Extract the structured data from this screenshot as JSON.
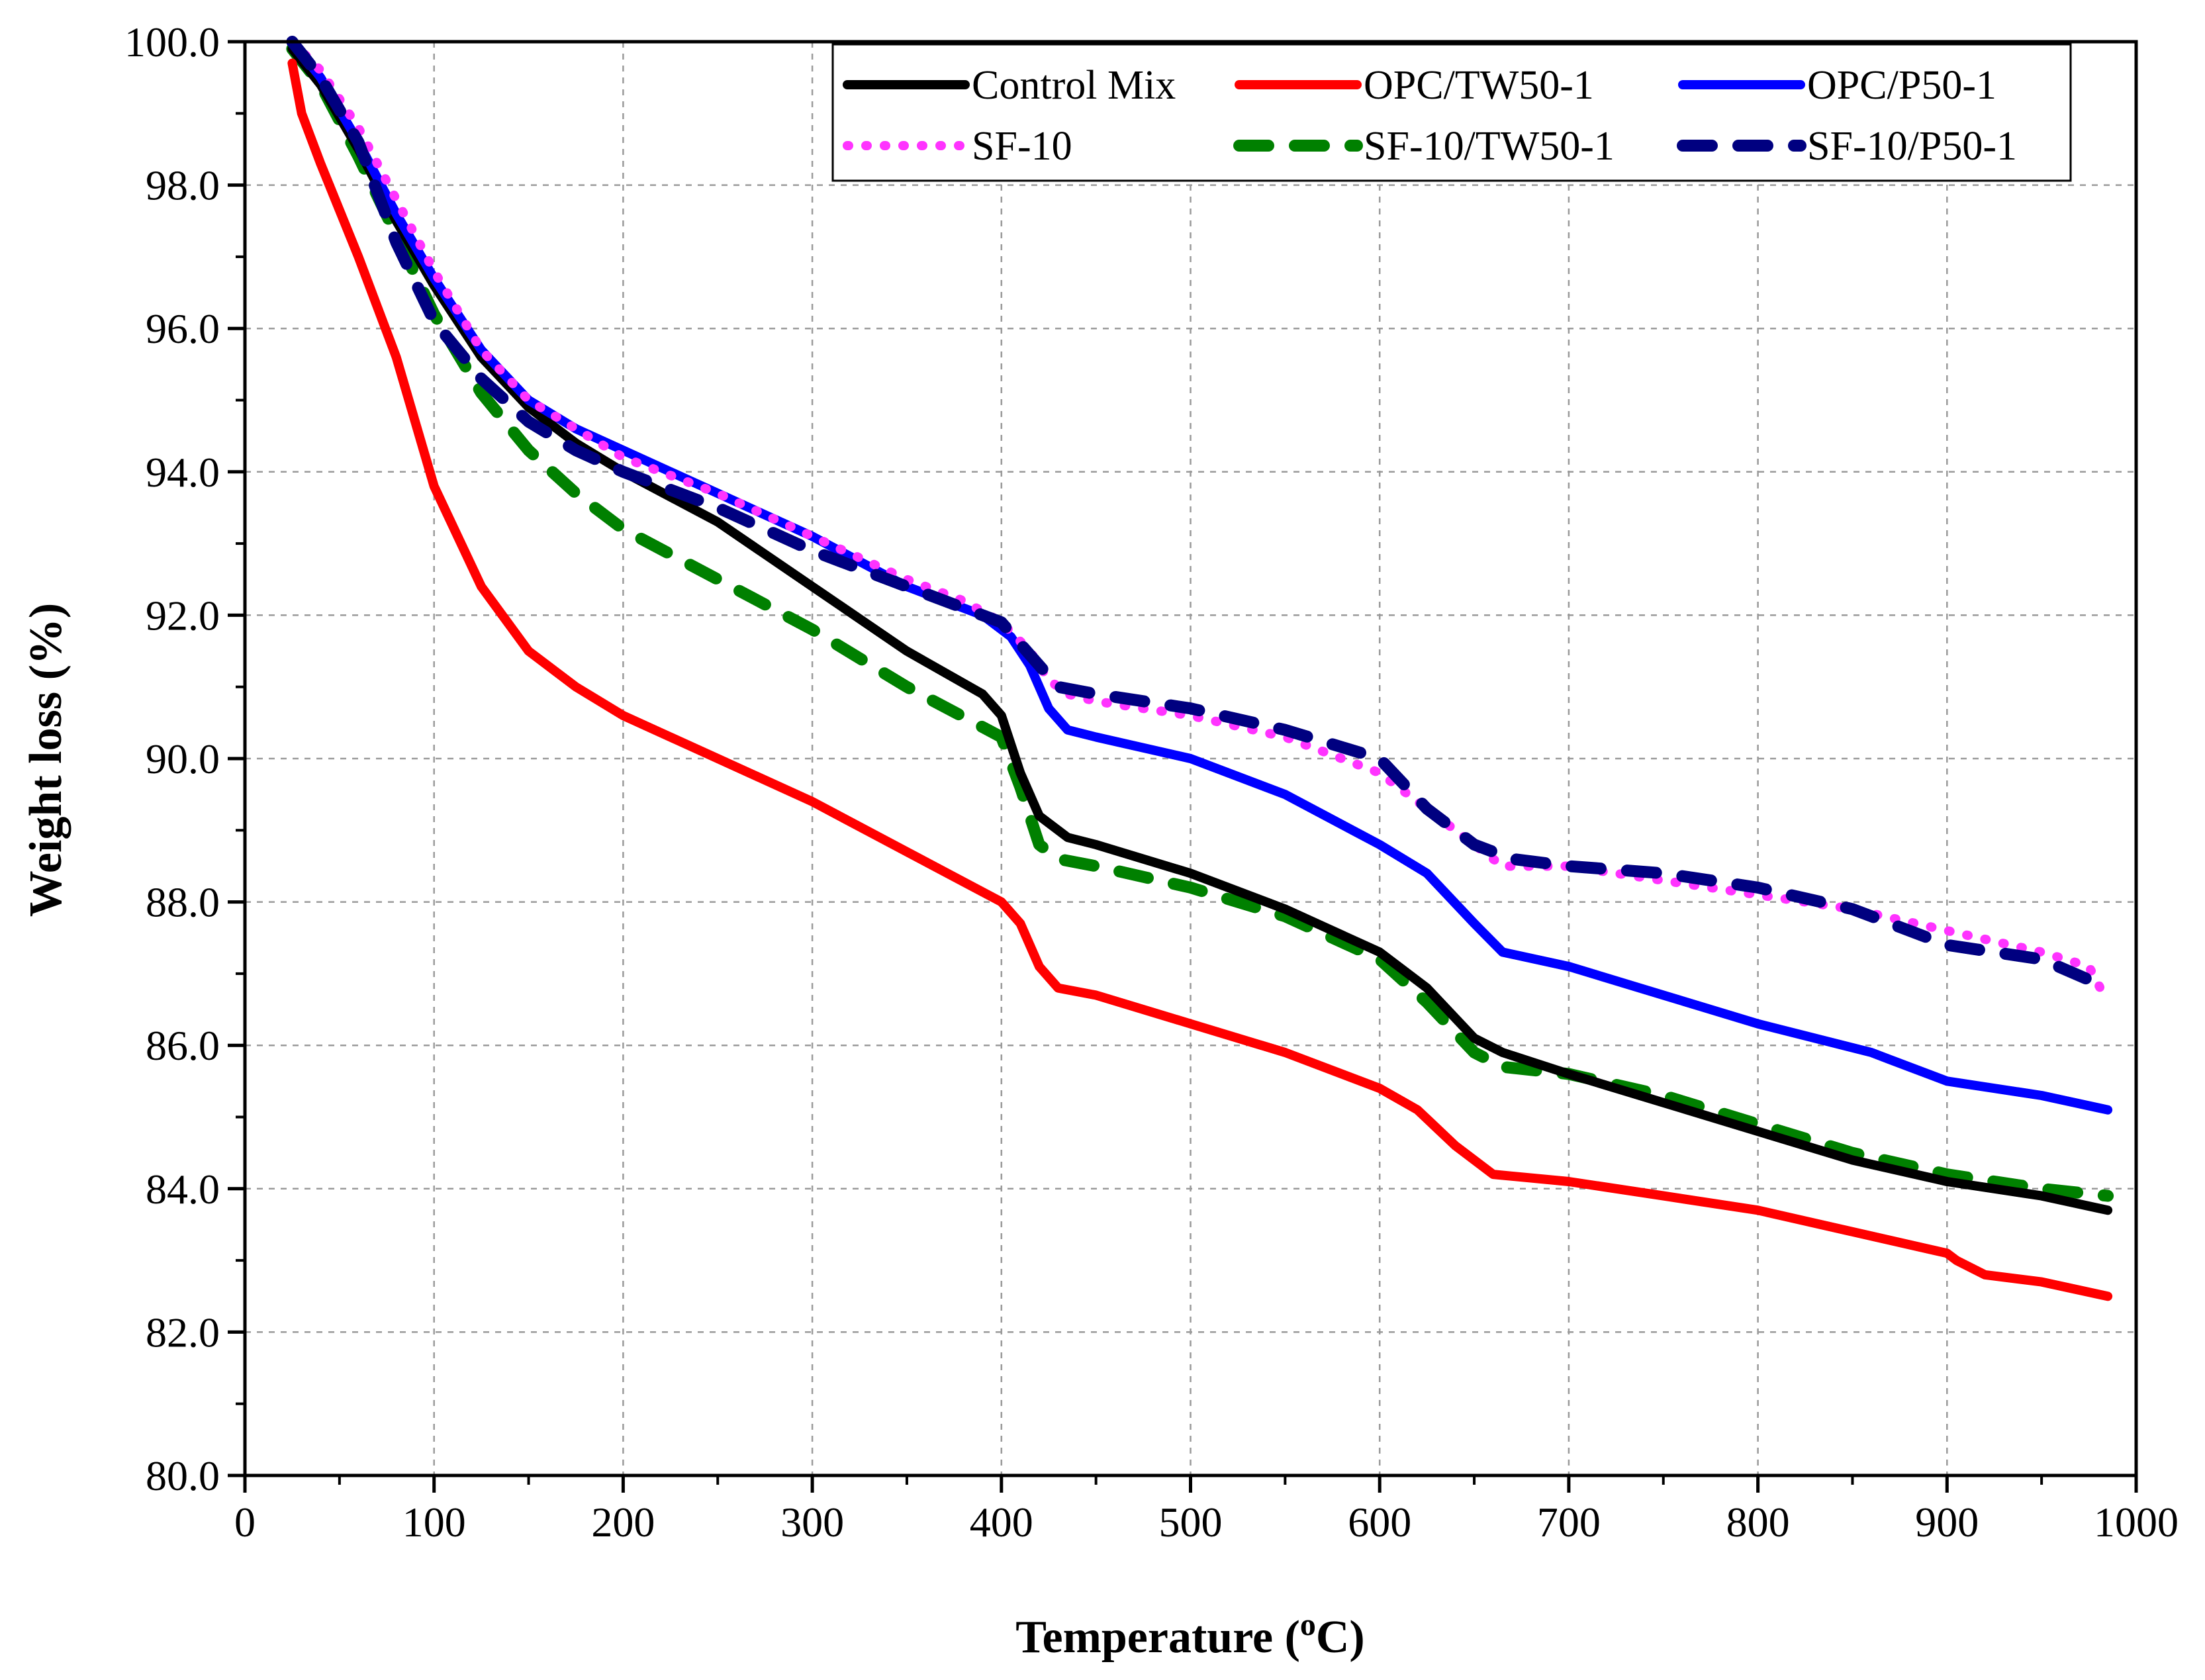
{
  "chart_data": {
    "type": "line",
    "xlabel": "Temperature (",
    "xlabel_sup": "o",
    "xlabel_suffix": "C)",
    "ylabel": "Weight loss (%)",
    "xlim": [
      0,
      1000
    ],
    "ylim": [
      80,
      100
    ],
    "x_ticks": [
      0,
      100,
      200,
      300,
      400,
      500,
      600,
      700,
      800,
      900,
      1000
    ],
    "x_tick_labels": [
      "0",
      "100",
      "200",
      "300",
      "400",
      "500",
      "600",
      "700",
      "800",
      "900",
      "1000"
    ],
    "y_ticks": [
      80,
      82,
      84,
      86,
      88,
      90,
      92,
      94,
      96,
      98,
      100
    ],
    "y_tick_labels": [
      "80.0",
      "82.0",
      "84.0",
      "86.0",
      "88.0",
      "90.0",
      "92.0",
      "94.0",
      "96.0",
      "98.0",
      "100.0"
    ],
    "grid": true,
    "legend_position": "top-right",
    "series": [
      {
        "name": "Control Mix",
        "color": "#000000",
        "style": "solid",
        "x": [
          25,
          40,
          60,
          80,
          100,
          125,
          150,
          175,
          200,
          250,
          300,
          350,
          390,
          400,
          410,
          420,
          435,
          450,
          500,
          550,
          600,
          625,
          650,
          665,
          700,
          750,
          800,
          850,
          900,
          950,
          985
        ],
        "y": [
          99.9,
          99.4,
          98.5,
          97.5,
          96.6,
          95.6,
          94.9,
          94.4,
          94.0,
          93.3,
          92.4,
          91.5,
          90.9,
          90.6,
          89.8,
          89.2,
          88.9,
          88.8,
          88.4,
          87.9,
          87.3,
          86.8,
          86.1,
          85.9,
          85.6,
          85.2,
          84.8,
          84.4,
          84.1,
          83.9,
          83.7
        ]
      },
      {
        "name": "OPC/TW50-1",
        "color": "#ff0000",
        "style": "solid",
        "x": [
          25,
          30,
          40,
          60,
          80,
          100,
          125,
          150,
          175,
          200,
          250,
          300,
          350,
          400,
          410,
          420,
          430,
          450,
          500,
          550,
          600,
          620,
          640,
          660,
          700,
          750,
          800,
          850,
          900,
          905,
          920,
          950,
          985
        ],
        "y": [
          99.7,
          99.0,
          98.3,
          97.0,
          95.6,
          93.8,
          92.4,
          91.5,
          91.0,
          90.6,
          90.0,
          89.4,
          88.7,
          88.0,
          87.7,
          87.1,
          86.8,
          86.7,
          86.3,
          85.9,
          85.4,
          85.1,
          84.6,
          84.2,
          84.1,
          83.9,
          83.7,
          83.4,
          83.1,
          83.0,
          82.8,
          82.7,
          82.5
        ]
      },
      {
        "name": "OPC/P50-1",
        "color": "#0000ff",
        "style": "solid",
        "x": [
          25,
          40,
          60,
          80,
          100,
          125,
          150,
          175,
          200,
          250,
          300,
          350,
          390,
          405,
          415,
          425,
          435,
          450,
          500,
          550,
          600,
          625,
          650,
          665,
          700,
          750,
          800,
          860,
          870,
          900,
          950,
          985
        ],
        "y": [
          100.0,
          99.5,
          98.6,
          97.6,
          96.7,
          95.7,
          95.0,
          94.6,
          94.3,
          93.7,
          93.1,
          92.4,
          92.0,
          91.7,
          91.3,
          90.7,
          90.4,
          90.3,
          90.0,
          89.5,
          88.8,
          88.4,
          87.7,
          87.3,
          87.1,
          86.7,
          86.3,
          85.9,
          85.8,
          85.5,
          85.3,
          85.1
        ]
      },
      {
        "name": "SF-10",
        "color": "#ff33ff",
        "style": "dotted",
        "x": [
          25,
          40,
          60,
          80,
          100,
          125,
          150,
          175,
          200,
          250,
          300,
          350,
          380,
          400,
          415,
          425,
          435,
          450,
          500,
          550,
          600,
          625,
          650,
          665,
          700,
          750,
          800,
          850,
          900,
          950,
          975,
          985
        ],
        "y": [
          100.0,
          99.6,
          98.8,
          97.8,
          96.8,
          95.7,
          95.0,
          94.6,
          94.2,
          93.7,
          93.1,
          92.5,
          92.2,
          91.9,
          91.5,
          91.1,
          90.9,
          90.8,
          90.6,
          90.3,
          89.8,
          89.3,
          88.8,
          88.5,
          88.5,
          88.3,
          88.1,
          87.9,
          87.6,
          87.3,
          87.1,
          86.6
        ]
      },
      {
        "name": "SF-10/TW50-1",
        "color": "#008000",
        "style": "dashed",
        "x": [
          25,
          40,
          60,
          80,
          100,
          125,
          150,
          175,
          200,
          250,
          300,
          350,
          400,
          410,
          420,
          430,
          450,
          500,
          550,
          600,
          625,
          650,
          665,
          700,
          750,
          800,
          850,
          900,
          950,
          985
        ],
        "y": [
          99.9,
          99.4,
          98.4,
          97.3,
          96.2,
          95.1,
          94.3,
          93.7,
          93.2,
          92.5,
          91.8,
          91.0,
          90.3,
          89.6,
          88.8,
          88.6,
          88.5,
          88.2,
          87.8,
          87.2,
          86.6,
          85.9,
          85.7,
          85.6,
          85.3,
          84.9,
          84.5,
          84.2,
          84.0,
          83.9
        ]
      },
      {
        "name": "SF-10/P50-1",
        "color": "#000080",
        "style": "dashed",
        "x": [
          25,
          40,
          60,
          80,
          100,
          125,
          150,
          175,
          200,
          250,
          300,
          350,
          400,
          410,
          420,
          430,
          450,
          500,
          550,
          600,
          625,
          650,
          670,
          700,
          750,
          800,
          850,
          900,
          950,
          985
        ],
        "y": [
          100.0,
          99.5,
          98.6,
          97.2,
          96.1,
          95.3,
          94.7,
          94.3,
          94.0,
          93.5,
          92.9,
          92.4,
          91.9,
          91.6,
          91.3,
          91.0,
          90.9,
          90.7,
          90.4,
          90.0,
          89.3,
          88.8,
          88.6,
          88.5,
          88.4,
          88.2,
          87.9,
          87.4,
          87.2,
          86.8
        ]
      }
    ]
  }
}
